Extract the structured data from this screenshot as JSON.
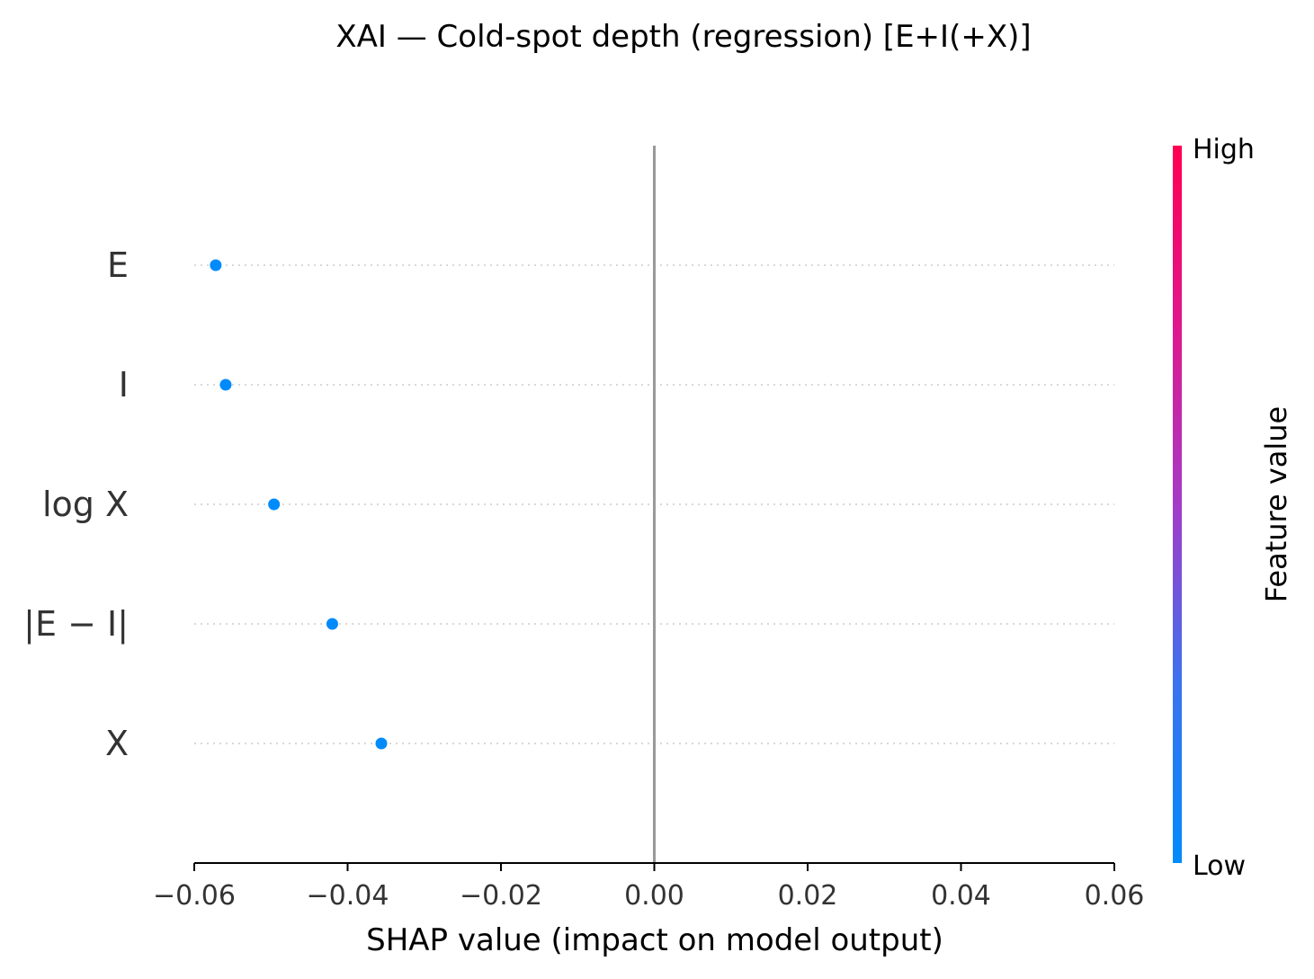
{
  "chart_data": {
    "type": "scatter",
    "title": "XAI — Cold-spot depth (regression) [E+I(+X)]",
    "xlabel": "SHAP value (impact on model output)",
    "ylabel": "",
    "xlim": [
      -0.06,
      0.06
    ],
    "xticks": [
      -0.06,
      -0.04,
      -0.02,
      0.0,
      0.02,
      0.04,
      0.06
    ],
    "xtick_labels": [
      "−0.06",
      "−0.04",
      "−0.02",
      "0.00",
      "0.02",
      "0.04",
      "0.06"
    ],
    "features": [
      "E",
      "I",
      "log X",
      "|E − I|",
      "X"
    ],
    "points": [
      {
        "feature": "E",
        "shap": -0.0572,
        "feature_value": "low"
      },
      {
        "feature": "I",
        "shap": -0.0559,
        "feature_value": "low"
      },
      {
        "feature": "log X",
        "shap": -0.0496,
        "feature_value": "low"
      },
      {
        "feature": "|E − I|",
        "shap": -0.042,
        "feature_value": "low"
      },
      {
        "feature": "X",
        "shap": -0.0356,
        "feature_value": "low"
      }
    ],
    "colorbar": {
      "label": "Feature value",
      "high_label": "High",
      "low_label": "Low",
      "high_color": "#ff0052",
      "low_color": "#008bfb"
    },
    "grid": false
  }
}
